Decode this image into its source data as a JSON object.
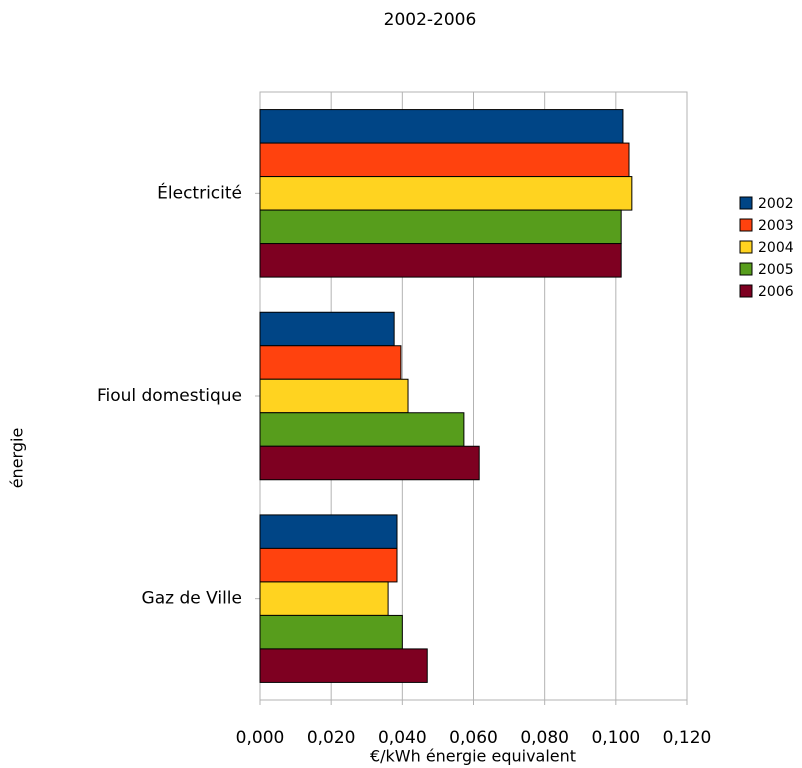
{
  "chart_data": {
    "type": "hbar",
    "title": "2002-2006",
    "x_label": "€/kWh énergie equivalent",
    "y_label": "énergie",
    "categories": [
      "Électricité",
      "Fioul domestique",
      "Gaz de Ville"
    ],
    "series": [
      {
        "name": "2002",
        "color": "#004586",
        "values": [
          0.102,
          0.0377,
          0.0385
        ]
      },
      {
        "name": "2003",
        "color": "#ff420e",
        "values": [
          0.1037,
          0.0396,
          0.0385
        ]
      },
      {
        "name": "2004",
        "color": "#ffd320",
        "values": [
          0.1045,
          0.0416,
          0.036
        ]
      },
      {
        "name": "2005",
        "color": "#579d1c",
        "values": [
          0.1015,
          0.0573,
          0.04
        ]
      },
      {
        "name": "2006",
        "color": "#7e0021",
        "values": [
          0.1015,
          0.0616,
          0.047
        ]
      }
    ],
    "xlim": [
      0,
      0.12
    ],
    "xticks": [
      {
        "value": 0,
        "label": "0,000"
      },
      {
        "value": 0.02,
        "label": "0,020"
      },
      {
        "value": 0.04,
        "label": "0,040"
      },
      {
        "value": 0.06,
        "label": "0,060"
      },
      {
        "value": 0.08,
        "label": "0,080"
      },
      {
        "value": 0.1,
        "label": "0,100"
      },
      {
        "value": 0.12,
        "label": "0,120"
      }
    ],
    "grid": true,
    "legend": "right"
  }
}
